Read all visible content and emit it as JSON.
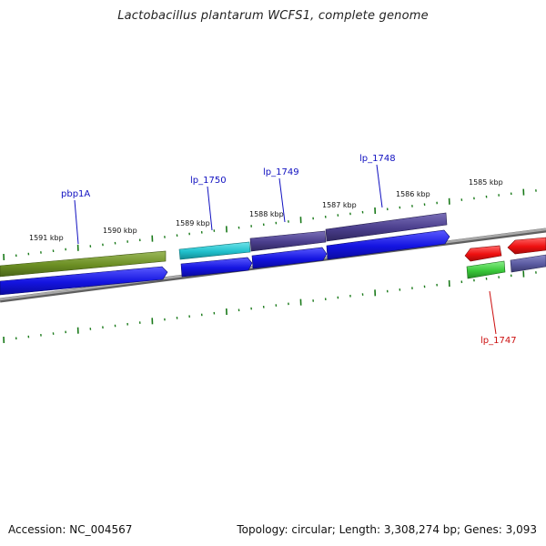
{
  "title": "Lactobacillus plantarum WCFS1, complete genome",
  "footer": {
    "accession": "Accession: NC_004567",
    "summary": "Topology: circular; Length: 3,308,274 bp; Genes: 3,093"
  },
  "colors": {
    "tick": "#1a7a1a",
    "backbone": "#8a8a8a",
    "label_blue": "#1010c0",
    "label_red": "#cc1010",
    "gene_olive": "#6b8e23",
    "gene_cyan": "#20c0cc",
    "gene_purple": "#4a3e8c",
    "gene_red": "#ee1010",
    "gene_green": "#3ac83a",
    "cds_blue": "#1414e0",
    "gene_slate": "#5a5aa0"
  },
  "kbp_labels": [
    "1591 kbp",
    "1590 kbp",
    "1589 kbp",
    "1588 kbp",
    "1587 kbp",
    "1586 kbp",
    "1585 kbp"
  ],
  "genes": [
    {
      "name": "pbp1A",
      "color": "blue"
    },
    {
      "name": "lp_1750",
      "color": "blue"
    },
    {
      "name": "lp_1749",
      "color": "blue"
    },
    {
      "name": "lp_1748",
      "color": "blue"
    },
    {
      "name": "lp_1747",
      "color": "red"
    }
  ]
}
